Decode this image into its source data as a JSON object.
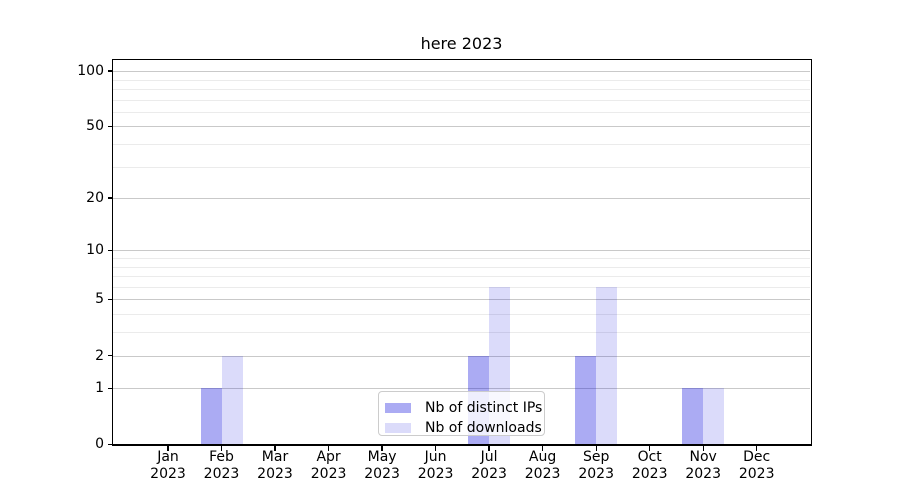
{
  "chart_data": {
    "type": "bar",
    "title": "here 2023",
    "categories": [
      "Jan 2023",
      "Feb 2023",
      "Mar 2023",
      "Apr 2023",
      "May 2023",
      "Jun 2023",
      "Jul 2023",
      "Aug 2023",
      "Sep 2023",
      "Oct 2023",
      "Nov 2023",
      "Dec 2023"
    ],
    "series": [
      {
        "name": "Nb of distinct IPs",
        "color": "rgba(0,0,220,0.33)",
        "values": [
          0,
          1,
          0,
          0,
          0,
          0,
          2,
          0,
          2,
          0,
          1,
          0
        ]
      },
      {
        "name": "Nb of downloads",
        "color": "rgba(0,0,220,0.14)",
        "values": [
          0,
          2,
          0,
          0,
          0,
          0,
          6,
          0,
          6,
          0,
          1,
          0
        ]
      }
    ],
    "xlabel": "",
    "ylabel": "",
    "yscale": "log1p",
    "ylim": [
      0,
      115
    ],
    "yticks": [
      0,
      1,
      2,
      5,
      10,
      20,
      50,
      100
    ],
    "minor_yticks": [
      3,
      4,
      6,
      7,
      8,
      9,
      30,
      40,
      60,
      70,
      80,
      90
    ],
    "grid": true,
    "legend_position": "lower center"
  },
  "colors": {
    "grid_major": "#c9c9c9",
    "grid_minor": "#ebebeb",
    "spine": "#000000",
    "legend_border": "#cccccc"
  }
}
